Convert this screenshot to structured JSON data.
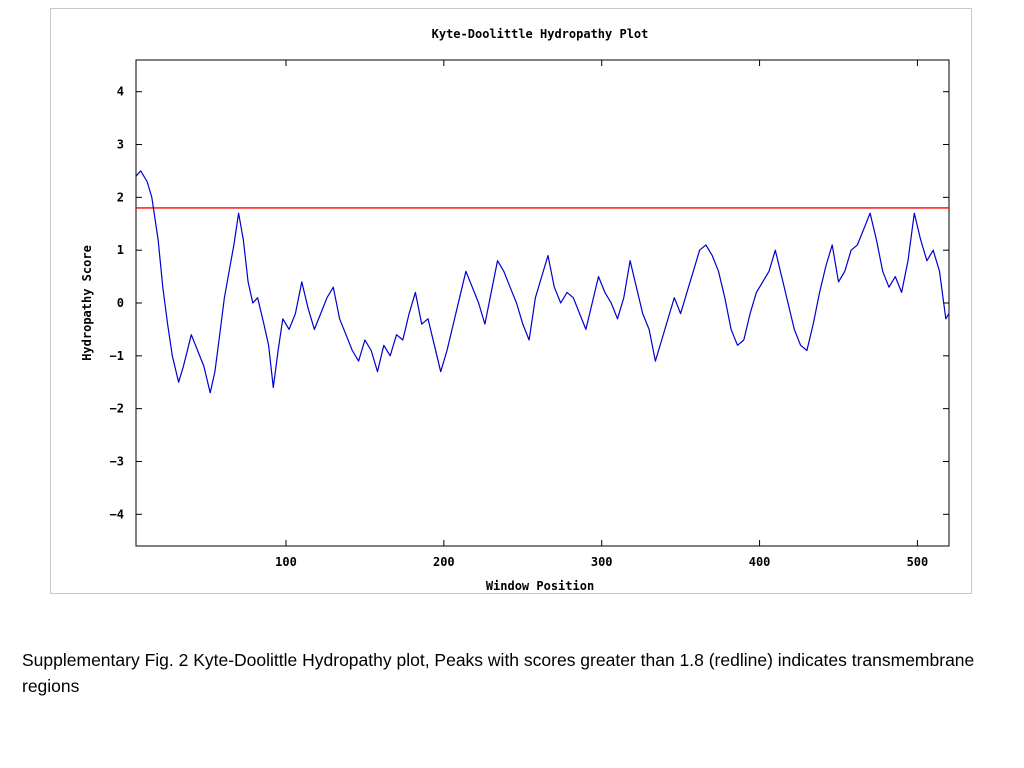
{
  "chart_data": {
    "type": "line",
    "title": "Kyte-Doolittle Hydropathy Plot",
    "xlabel": "Window Position",
    "ylabel": "Hydropathy Score",
    "xlim": [
      5,
      520
    ],
    "ylim": [
      -4.6,
      4.6
    ],
    "xticks": [
      100,
      200,
      300,
      400,
      500
    ],
    "yticks": [
      -4,
      -3,
      -2,
      -1,
      0,
      1,
      2,
      3,
      4
    ],
    "threshold": {
      "y": 1.8,
      "color": "#ff0000"
    },
    "series_color": "#0000cc",
    "grid": false,
    "series": [
      {
        "x": [
          5,
          8,
          12,
          15,
          19,
          22,
          25,
          28,
          32,
          35,
          40,
          44,
          48,
          52,
          55,
          58,
          61,
          64,
          67,
          70,
          73,
          76,
          79,
          82,
          86,
          89,
          92,
          95,
          98,
          102,
          106,
          110,
          114,
          118,
          122,
          126,
          130,
          134,
          138,
          142,
          146,
          150,
          154,
          158,
          162,
          166,
          170,
          174,
          178,
          182,
          186,
          190,
          194,
          198,
          202,
          206,
          210,
          214,
          218,
          222,
          226,
          230,
          234,
          238,
          242,
          246,
          250,
          254,
          258,
          262,
          266,
          270,
          274,
          278,
          282,
          286,
          290,
          294,
          298,
          302,
          306,
          310,
          314,
          318,
          322,
          326,
          330,
          334,
          338,
          342,
          346,
          350,
          354,
          358,
          362,
          366,
          370,
          374,
          378,
          382,
          386,
          390,
          394,
          398,
          402,
          406,
          410,
          414,
          418,
          422,
          426,
          430,
          434,
          438,
          442,
          446,
          450,
          454,
          458,
          462,
          466,
          470,
          474,
          478,
          482,
          486,
          490,
          494,
          498,
          502,
          506,
          510,
          514,
          518,
          520
        ],
        "values": [
          2.4,
          2.5,
          2.3,
          2.0,
          1.2,
          0.3,
          -0.4,
          -1.0,
          -1.5,
          -1.2,
          -0.6,
          -0.9,
          -1.2,
          -1.7,
          -1.3,
          -0.6,
          0.1,
          0.6,
          1.1,
          1.7,
          1.2,
          0.4,
          0.0,
          0.1,
          -0.4,
          -0.8,
          -1.6,
          -0.9,
          -0.3,
          -0.5,
          -0.2,
          0.4,
          -0.1,
          -0.5,
          -0.2,
          0.1,
          0.3,
          -0.3,
          -0.6,
          -0.9,
          -1.1,
          -0.7,
          -0.9,
          -1.3,
          -0.8,
          -1.0,
          -0.6,
          -0.7,
          -0.2,
          0.2,
          -0.4,
          -0.3,
          -0.8,
          -1.3,
          -0.9,
          -0.4,
          0.1,
          0.6,
          0.3,
          0.0,
          -0.4,
          0.2,
          0.8,
          0.6,
          0.3,
          0.0,
          -0.4,
          -0.7,
          0.1,
          0.5,
          0.9,
          0.3,
          0.0,
          0.2,
          0.1,
          -0.2,
          -0.5,
          0.0,
          0.5,
          0.2,
          0.0,
          -0.3,
          0.1,
          0.8,
          0.3,
          -0.2,
          -0.5,
          -1.1,
          -0.7,
          -0.3,
          0.1,
          -0.2,
          0.2,
          0.6,
          1.0,
          1.1,
          0.9,
          0.6,
          0.1,
          -0.5,
          -0.8,
          -0.7,
          -0.2,
          0.2,
          0.4,
          0.6,
          1.0,
          0.5,
          0.0,
          -0.5,
          -0.8,
          -0.9,
          -0.4,
          0.2,
          0.7,
          1.1,
          0.4,
          0.6,
          1.0,
          1.1,
          1.4,
          1.7,
          1.2,
          0.6,
          0.3,
          0.5,
          0.2,
          0.8,
          1.7,
          1.2,
          0.8,
          1.0,
          0.6,
          -0.3,
          -0.2
        ]
      }
    ]
  },
  "caption": "Supplementary Fig. 2 Kyte-Doolittle Hydropathy plot, Peaks with scores greater than 1.8 (redline) indicates transmembrane regions"
}
